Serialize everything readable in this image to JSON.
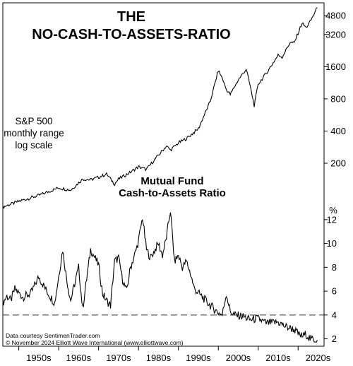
{
  "chart_data": [
    {
      "type": "line",
      "title_line1": "THE",
      "title_line2": "NO-CASH-TO-ASSETS-RATIO",
      "series_label": [
        "S&P 500",
        "monthly range",
        "log scale"
      ],
      "scale": "log",
      "ylim": [
        70,
        5600
      ],
      "y_ticks": [
        "4800",
        "3200",
        "1600",
        "800",
        "400",
        "200"
      ],
      "y_tick_values": [
        4800,
        3200,
        1600,
        800,
        400,
        200
      ],
      "x": [
        1946,
        1950,
        1955,
        1960,
        1963,
        1966,
        1968,
        1970,
        1972,
        1974,
        1975,
        1978,
        1980,
        1982,
        1984,
        1987,
        1988,
        1990,
        1992,
        1995,
        1998,
        2000,
        2001,
        2002,
        2003,
        2005,
        2007,
        2008,
        2009,
        2010,
        2012,
        2015,
        2016,
        2018,
        2019,
        2020,
        2021,
        2022,
        2023,
        2024.8
      ],
      "values": [
        78,
        88,
        100,
        118,
        112,
        142,
        140,
        148,
        158,
        128,
        142,
        165,
        185,
        175,
        215,
        290,
        265,
        310,
        340,
        420,
        760,
        1480,
        1250,
        980,
        880,
        1200,
        1520,
        1050,
        690,
        1100,
        1380,
        2050,
        1970,
        2700,
        2650,
        3300,
        4100,
        3700,
        4200,
        5700
      ]
    },
    {
      "type": "line",
      "title_line1": "Mutual Fund",
      "title_line2": "Cash-to-Assets Ratio",
      "unit": "%",
      "ylim": [
        1.5,
        13
      ],
      "y_ticks": [
        "12",
        "10",
        "8",
        "6",
        "4",
        "2"
      ],
      "y_tick_values": [
        12,
        10,
        8,
        6,
        4,
        2
      ],
      "reference_line": 4,
      "x_ticks": [
        "1950s",
        "1960s",
        "1970s",
        "1980s",
        "1990s",
        "2000s",
        "2010s",
        "2020s"
      ],
      "x_tick_years": [
        1955,
        1965,
        1975,
        1985,
        1995,
        2005,
        2015,
        2025
      ],
      "x": [
        1946,
        1947,
        1948,
        1949,
        1951,
        1953,
        1955,
        1957,
        1959,
        1961,
        1962,
        1963,
        1965,
        1966,
        1968,
        1970,
        1971,
        1972,
        1973,
        1974,
        1975,
        1976,
        1977,
        1978,
        1979,
        1980,
        1981,
        1982,
        1983,
        1985,
        1986,
        1987,
        1988,
        1989,
        1990,
        1991,
        1992,
        1993,
        1994,
        1996,
        1998,
        2000,
        2001,
        2002,
        2003,
        2004,
        2006,
        2008,
        2010,
        2012,
        2015,
        2017,
        2019,
        2020,
        2021,
        2022,
        2023,
        2024.8
      ],
      "values": [
        5.0,
        5.6,
        5.2,
        6.2,
        5.5,
        5.8,
        7.2,
        6.0,
        5.0,
        9.5,
        7.0,
        5.2,
        8.0,
        4.5,
        9.5,
        8.2,
        5.8,
        5.2,
        4.8,
        8.5,
        8.8,
        7.0,
        6.0,
        8.0,
        9.0,
        10.2,
        12.2,
        9.5,
        8.8,
        10.0,
        9.0,
        10.5,
        12.8,
        8.5,
        9.0,
        8.0,
        8.5,
        7.5,
        6.2,
        5.5,
        4.8,
        4.2,
        4.0,
        5.8,
        4.3,
        4.0,
        3.9,
        3.6,
        3.7,
        3.3,
        3.4,
        3.0,
        2.8,
        2.4,
        2.2,
        2.4,
        2.0,
        1.9
      ]
    }
  ],
  "sources": [
    "Data courtesy SentimenTrader.com",
    "© November 2024 Elliott Wave International (www.elliottwave.com)"
  ]
}
